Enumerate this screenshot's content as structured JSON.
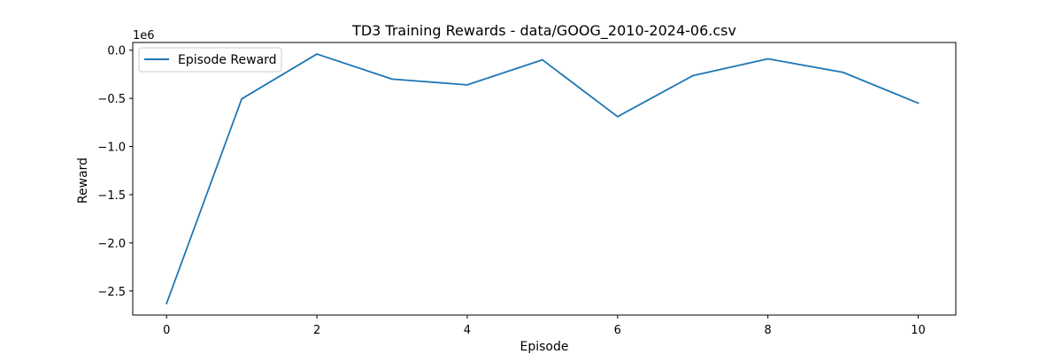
{
  "chart_data": {
    "type": "line",
    "title": "TD3 Training Rewards - data/GOOG_2010-2024-06.csv",
    "xlabel": "Episode",
    "ylabel": "Reward",
    "y_scale_label": "1e6",
    "y_scale": 1000000,
    "xlim": [
      -0.45,
      10.5
    ],
    "ylim": [
      -2.75,
      0.08
    ],
    "x_ticks": [
      0,
      2,
      4,
      6,
      8,
      10
    ],
    "x_tick_labels": [
      "0",
      "2",
      "4",
      "6",
      "8",
      "10"
    ],
    "y_ticks": [
      0.0,
      -0.5,
      -1.0,
      -1.5,
      -2.0,
      -2.5
    ],
    "y_tick_labels": [
      "0.0",
      "−0.5",
      "−1.0",
      "−1.5",
      "−2.0",
      "−2.5"
    ],
    "grid": false,
    "legend_position": "top-left",
    "series": [
      {
        "name": "Episode Reward",
        "color": "#1f77b4",
        "x": [
          0,
          1,
          2,
          3,
          4,
          5,
          6,
          7,
          8,
          9,
          10
        ],
        "values": [
          -2.63,
          -0.505,
          -0.04,
          -0.3,
          -0.36,
          -0.1,
          -0.69,
          -0.265,
          -0.09,
          -0.23,
          -0.55
        ]
      }
    ]
  }
}
